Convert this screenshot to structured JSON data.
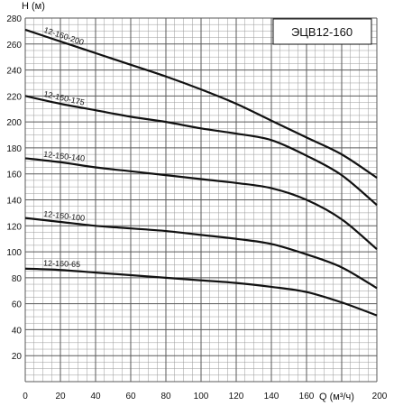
{
  "chart_data": {
    "type": "line",
    "title": "ЭЦВ12-160",
    "xlabel": "Q (м³/ч)",
    "ylabel": "H (м)",
    "xlim": [
      0,
      200
    ],
    "ylim": [
      0,
      280
    ],
    "xticks": [
      0,
      20,
      40,
      60,
      80,
      100,
      120,
      140,
      160,
      180,
      200
    ],
    "yticks": [
      20,
      40,
      60,
      80,
      100,
      120,
      140,
      160,
      180,
      200,
      220,
      240,
      260,
      280
    ],
    "grid": true,
    "colors": {
      "grid": "#9a9a9a",
      "line": "#111111",
      "background": "#ffffff"
    },
    "series": [
      {
        "name": "12-160-200",
        "x": [
          0,
          20,
          40,
          60,
          80,
          100,
          120,
          140,
          160,
          180,
          200
        ],
        "y": [
          271,
          262,
          253,
          244,
          235,
          225,
          214,
          201,
          188,
          175,
          157
        ]
      },
      {
        "name": "12-160-175",
        "x": [
          0,
          20,
          40,
          60,
          80,
          100,
          120,
          140,
          160,
          180,
          200
        ],
        "y": [
          220,
          214,
          209,
          204,
          200,
          195,
          191,
          186,
          174,
          159,
          136
        ]
      },
      {
        "name": "12-160-140",
        "x": [
          0,
          20,
          40,
          60,
          80,
          100,
          120,
          140,
          160,
          180,
          200
        ],
        "y": [
          172,
          169,
          165,
          162,
          159,
          156,
          153,
          149,
          140,
          125,
          102
        ]
      },
      {
        "name": "12-160-100",
        "x": [
          0,
          20,
          40,
          60,
          80,
          100,
          120,
          140,
          160,
          180,
          200
        ],
        "y": [
          126,
          123,
          120,
          118,
          116,
          113,
          110,
          106,
          98,
          88,
          72
        ]
      },
      {
        "name": "12-160-65",
        "x": [
          0,
          20,
          40,
          60,
          80,
          100,
          120,
          140,
          160,
          180,
          200
        ],
        "y": [
          87,
          86,
          84,
          82,
          80,
          78,
          76,
          73,
          69,
          61,
          51
        ]
      }
    ]
  }
}
